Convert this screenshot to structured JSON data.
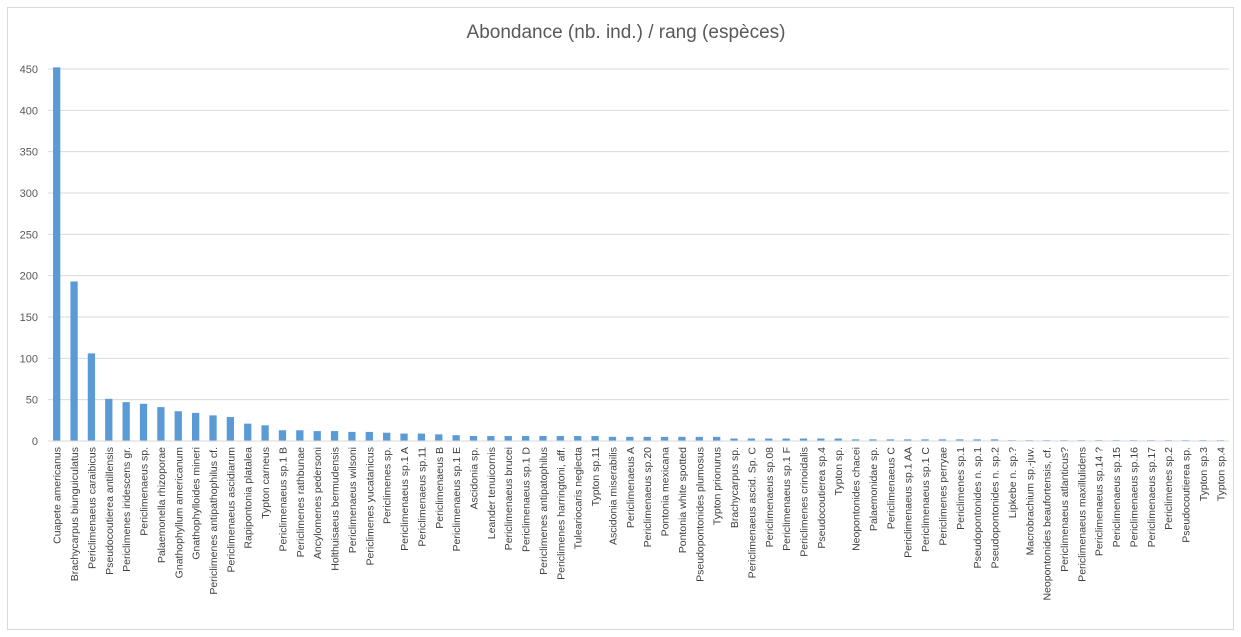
{
  "chart_data": {
    "type": "bar",
    "title": "Abondance  (nb. ind.) / rang (espèces)",
    "xlabel": "",
    "ylabel": "",
    "ylim": [
      0,
      450
    ],
    "yticks": [
      0,
      50,
      100,
      150,
      200,
      250,
      300,
      350,
      400,
      450
    ],
    "grid": true,
    "legend": "none",
    "bar_color": "#5b9bd5",
    "categories": [
      "Cuapete americanus",
      "Brachycarpus biunguiculatus",
      "Periclimenaeus caraibicus",
      "Pseudocoutierea antillensis",
      "Periclimenes iridescens gr.",
      "Periclimenaeus sp.",
      "Palaemonella rhizoporae",
      "Gnathophyllum americanum",
      "Gnathophylloides mineri",
      "Periclimenes antipathophilus cf.",
      "Periclimenaeus ascidiarum",
      "Rapipontonia platalea",
      "Typton carneus",
      "Periclimenaeus sp.1 B",
      "Periclimenes rathbunae",
      "Ancylomenes pedersoni",
      "Holthuisaeus bermudensis",
      "Periclimenaeus wilsoni",
      "Periclimenes yucatanicus",
      "Periclimenes sp.",
      "Periclimenaeus sp.1 A",
      "Periclimenaeus sp.11",
      "Periclimenaeus B",
      "Periclimenaeus sp.1 E",
      "Ascidonia sp.",
      "Leander tenuicornis",
      "Periclimenaeus brucei",
      "Periclimenaeus sp.1 D",
      "Periclimenes antipatophilus",
      "Periclimenes harringtoni, aff.",
      "Tuleariocaris neglecta",
      "Typton sp.11",
      "Ascidonia miserabilis",
      "Periclimenaeus A",
      "Periclimenaeus sp.20",
      "Pontonia mexicana",
      "Pontonia white spotted",
      "Pseudopontonides plumosus",
      "Typton prionurus",
      "Brachycarpus sp.",
      "Periclimenaeus ascid. Sp. C",
      "Periclimenaeus sp.08",
      "Periclimenaeus sp.1 F",
      "Periclimenes crinoidalis",
      "Pseudocoutierea sp.4",
      "Typton sp.",
      "Neopontonides chacei",
      "Palaemonidae sp.",
      "Periclimenaeus C",
      "Periclimenaeus sp.1 AA",
      "Periclimenaeus sp.1 C",
      "Periclimenes perryae",
      "Periclimenes sp.1",
      "Pseudopontonides n. sp.1",
      "Pseudopontonides n. sp.2",
      "Lipkebe n. sp.?",
      "Macrobrachium sp.-juv.",
      "Neopontonides beaufortensis, cf.",
      "Periclimenaeus atlanticus?",
      "Periclimenaeus maxillulidens",
      "Periclimenaeus sp.14 ?",
      "Periclimenaeus sp.15",
      "Periclimenaeus sp.16",
      "Periclimenaeus sp.17",
      "Periclimenes sp.2",
      "Pseudocoutierea sp.",
      "Typton sp.3",
      "Typton sp.4"
    ],
    "values": [
      452,
      193,
      106,
      51,
      47,
      45,
      41,
      36,
      34,
      31,
      29,
      21,
      19,
      13,
      13,
      12,
      12,
      11,
      11,
      10,
      9,
      9,
      8,
      7,
      6,
      6,
      6,
      6,
      6,
      6,
      6,
      6,
      5,
      5,
      5,
      5,
      5,
      5,
      5,
      3,
      3,
      3,
      3,
      3,
      3,
      3,
      2,
      2,
      2,
      2,
      2,
      2,
      2,
      2,
      2,
      1,
      1,
      1,
      1,
      1,
      1,
      1,
      1,
      1,
      1,
      1,
      1,
      1
    ]
  }
}
